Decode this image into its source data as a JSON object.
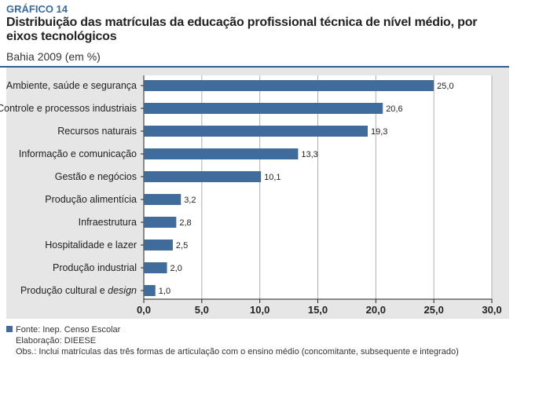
{
  "header": {
    "label": "GRÁFICO 14",
    "title": "Distribuição das  matrículas da educação profissional técnica de nível médio, por eixos tecnológicos",
    "subtitle": "Bahia 2009 (em %)"
  },
  "chart_data": {
    "type": "bar",
    "orientation": "horizontal",
    "categories": [
      "Ambiente, saúde e segurança",
      "Controle e processos industriais",
      "Recursos naturais",
      "Informação e comunicação",
      "Gestão e negócios",
      "Produção alimentícia",
      "Infraestrutura",
      "Hospitalidade e lazer",
      "Produção industrial",
      "Produção cultural e design"
    ],
    "values": [
      25.0,
      20.6,
      19.3,
      13.3,
      10.1,
      3.2,
      2.8,
      2.5,
      2.0,
      1.0
    ],
    "value_labels": [
      "25,0",
      "20,6",
      "19,3",
      "13,3",
      "10,1",
      "3,2",
      "2,8",
      "2,5",
      "2,0",
      "1,0"
    ],
    "xlim": [
      0,
      30
    ],
    "xticks": [
      "0,0",
      "5,0",
      "10,0",
      "15,0",
      "20,0",
      "25,0",
      "30,0"
    ],
    "grid": true,
    "bar_color": "#3f6c9a"
  },
  "footer": {
    "source": "Fonte: Inep. Censo Escolar",
    "elaboration": "Elaboração: DIEESE",
    "notes": "Obs.: Inclui matrículas das três formas de articulação com o ensino médio (concomitante, subsequente e integrado)"
  }
}
